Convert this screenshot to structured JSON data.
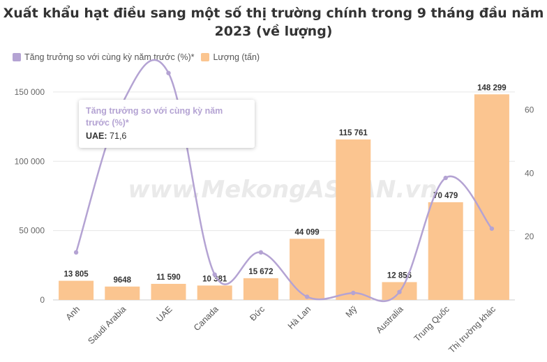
{
  "chart_data": {
    "type": "bar",
    "title": "Xuất khẩu hạt điều sang một số thị trường chính trong 9 tháng đầu năm 2023 (về lượng)",
    "categories": [
      "Anh",
      "Saudi Arabia",
      "UAE",
      "Canada",
      "Đức",
      "Hà Lan",
      "Mỹ",
      "Australia",
      "Trung Quốc",
      "Thị trường khác"
    ],
    "series": [
      {
        "name": "Lượng (tấn)",
        "type": "bar",
        "axis": "left",
        "color": "#fbc590",
        "values": [
          13805,
          9648,
          11590,
          10381,
          15672,
          44099,
          115761,
          12856,
          70479,
          148299
        ],
        "labels": [
          "13 805",
          "9648",
          "11 590",
          "10 381",
          "15 672",
          "44 099",
          "115 761",
          "12 856",
          "70 479",
          "148 299"
        ]
      },
      {
        "name": "Tăng trưởng so với cùng kỳ năm trước (%)*",
        "type": "line",
        "axis": "right",
        "color": "#b4a3d3",
        "values": [
          15,
          62,
          71.6,
          8,
          15,
          1,
          2.2,
          2.5,
          38.5,
          22.5
        ]
      }
    ],
    "y_left": {
      "ylim": [
        0,
        160000
      ],
      "ticks": [
        0,
        50000,
        100000,
        150000
      ],
      "tick_labels": [
        "0",
        "50 000",
        "100 000",
        "150 000"
      ]
    },
    "y_right": {
      "ylim": [
        0,
        70
      ],
      "ticks": [
        20,
        40,
        60
      ],
      "tick_labels": [
        "20",
        "40",
        "60"
      ]
    },
    "grid": true,
    "legend": "top-left",
    "watermark": "www.MekongASEAN.vn",
    "tooltip": {
      "title": "Tăng trưởng so với cùng kỳ năm trước (%)*",
      "label": "UAE:",
      "value": "71,6"
    }
  }
}
